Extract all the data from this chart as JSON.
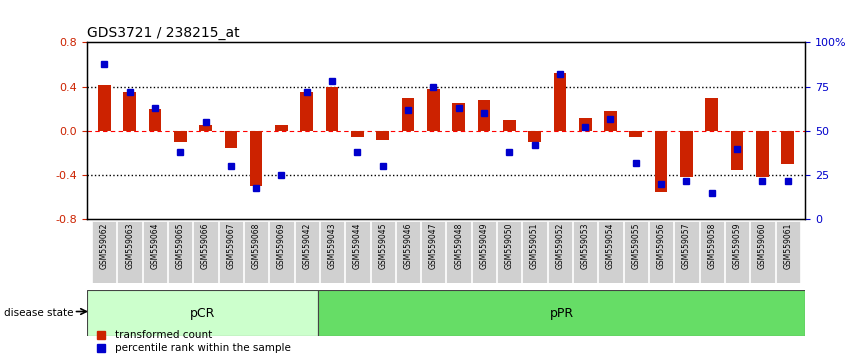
{
  "title": "GDS3721 / 238215_at",
  "samples": [
    "GSM559062",
    "GSM559063",
    "GSM559064",
    "GSM559065",
    "GSM559066",
    "GSM559067",
    "GSM559068",
    "GSM559069",
    "GSM559042",
    "GSM559043",
    "GSM559044",
    "GSM559045",
    "GSM559046",
    "GSM559047",
    "GSM559048",
    "GSM559049",
    "GSM559050",
    "GSM559051",
    "GSM559052",
    "GSM559053",
    "GSM559054",
    "GSM559055",
    "GSM559056",
    "GSM559057",
    "GSM559058",
    "GSM559059",
    "GSM559060",
    "GSM559061"
  ],
  "bar_values": [
    0.42,
    0.35,
    0.2,
    -0.1,
    0.05,
    -0.15,
    -0.5,
    0.05,
    0.35,
    0.4,
    -0.05,
    -0.08,
    0.3,
    0.38,
    0.25,
    0.28,
    0.1,
    -0.1,
    0.52,
    0.12,
    0.18,
    -0.05,
    -0.55,
    -0.42,
    0.3,
    -0.35,
    -0.42,
    -0.3
  ],
  "percentile_values": [
    88,
    72,
    63,
    38,
    55,
    30,
    18,
    25,
    72,
    78,
    38,
    30,
    62,
    75,
    63,
    60,
    38,
    42,
    82,
    52,
    57,
    32,
    20,
    22,
    15,
    40,
    22,
    22
  ],
  "bar_color": "#cc2200",
  "percentile_color": "#0000cc",
  "ylim_left": [
    -0.8,
    0.8
  ],
  "ylim_right": [
    0,
    100
  ],
  "yticks_left": [
    -0.8,
    -0.4,
    0.0,
    0.4,
    0.8
  ],
  "yticks_right": [
    0,
    25,
    50,
    75,
    100
  ],
  "ytick_labels_right": [
    "0",
    "25",
    "50",
    "75",
    "100%"
  ],
  "hlines": [
    0.4,
    0.0,
    -0.4
  ],
  "hline_styles": [
    "dotted",
    "dashed",
    "dotted"
  ],
  "pcr_count": 9,
  "ppr_count": 19,
  "pcr_label": "pCR",
  "ppr_label": "pPR",
  "disease_state_label": "disease state",
  "legend_bar_label": "transformed count",
  "legend_pct_label": "percentile rank within the sample",
  "background_color": "#ffffff",
  "plot_bg_color": "#ffffff",
  "tick_label_area_color": "#d0d0d0",
  "pcr_color": "#ccffcc",
  "ppr_color": "#66dd66",
  "bar_width": 0.5
}
